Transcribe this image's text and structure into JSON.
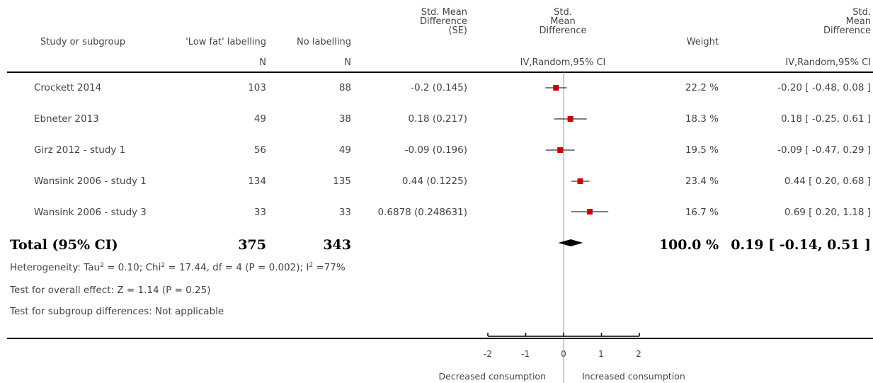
{
  "header": {
    "study_label": "Study or subgroup",
    "group1_label": "'Low fat' labelling",
    "group2_label": "No labelling",
    "smd_se_label": [
      "Std. Mean",
      "Difference",
      "(SE)"
    ],
    "plot_label": [
      "Std.",
      "Mean",
      "Difference"
    ],
    "weight_label": "Weight",
    "effect_label": [
      "Std.",
      "Mean",
      "Difference"
    ],
    "n_label": "N",
    "plot_method": "IV,Random,95% CI",
    "effect_method": "IV,Random,95% CI"
  },
  "studies": [
    {
      "name": "Crockett 2014",
      "n1": "103",
      "n2": "88",
      "smd_se": "-0.2 (0.145)",
      "weight": "22.2 %",
      "ci_text": "-0.20 [ -0.48, 0.08 ]"
    },
    {
      "name": "Ebneter 2013",
      "n1": "49",
      "n2": "38",
      "smd_se": "0.18 (0.217)",
      "weight": "18.3 %",
      "ci_text": "0.18 [ -0.25, 0.61 ]"
    },
    {
      "name": "Girz 2012 - study 1",
      "n1": "56",
      "n2": "49",
      "smd_se": "-0.09 (0.196)",
      "weight": "19.5 %",
      "ci_text": "-0.09 [ -0.47, 0.29 ]"
    },
    {
      "name": "Wansink 2006 - study 1",
      "n1": "134",
      "n2": "135",
      "smd_se": "0.44 (0.1225)",
      "weight": "23.4 %",
      "ci_text": "0.44 [ 0.20, 0.68 ]"
    },
    {
      "name": "Wansink 2006 - study 3",
      "n1": "33",
      "n2": "33",
      "smd_se": "0.6878 (0.248631)",
      "weight": "16.7 %",
      "ci_text": "0.69 [ 0.20, 1.18 ]"
    }
  ],
  "total": {
    "label": "Total (95% CI)",
    "n1": "375",
    "n2": "343",
    "weight": "100.0 %",
    "ci_text": "0.19 [ -0.14, 0.51 ]"
  },
  "notes": {
    "heterogeneity_a": "Heterogeneity: Tau",
    "heterogeneity_b": " = 0.10; Chi",
    "heterogeneity_c": " = 17.44, df = 4 (P = 0.002); I",
    "heterogeneity_d": " =77%",
    "sup": "2",
    "overall": "Test for overall effect: Z = 1.14 (P = 0.25)",
    "subgroup": "Test for subgroup differences: Not applicable"
  },
  "axis": {
    "ticks": [
      "-2",
      "-1",
      "0",
      "1",
      "2"
    ],
    "left_label": "Decreased consumption",
    "right_label": "Increased consumption"
  },
  "colors": {
    "marker": "#cc0000",
    "line": "#000000",
    "text": "#444444"
  },
  "chart_data": {
    "type": "forest",
    "x_range": [
      -2,
      2
    ],
    "null_line": 0,
    "studies": [
      {
        "name": "Crockett 2014",
        "estimate": -0.2,
        "ci_low": -0.48,
        "ci_high": 0.08,
        "weight": 22.2
      },
      {
        "name": "Ebneter 2013",
        "estimate": 0.18,
        "ci_low": -0.25,
        "ci_high": 0.61,
        "weight": 18.3
      },
      {
        "name": "Girz 2012 - study 1",
        "estimate": -0.09,
        "ci_low": -0.47,
        "ci_high": 0.29,
        "weight": 19.5
      },
      {
        "name": "Wansink 2006 - study 1",
        "estimate": 0.44,
        "ci_low": 0.2,
        "ci_high": 0.68,
        "weight": 23.4
      },
      {
        "name": "Wansink 2006 - study 3",
        "estimate": 0.69,
        "ci_low": 0.2,
        "ci_high": 1.18,
        "weight": 16.7
      }
    ],
    "total": {
      "estimate": 0.19,
      "ci_low": -0.14,
      "ci_high": 0.51,
      "weight": 100.0
    }
  }
}
